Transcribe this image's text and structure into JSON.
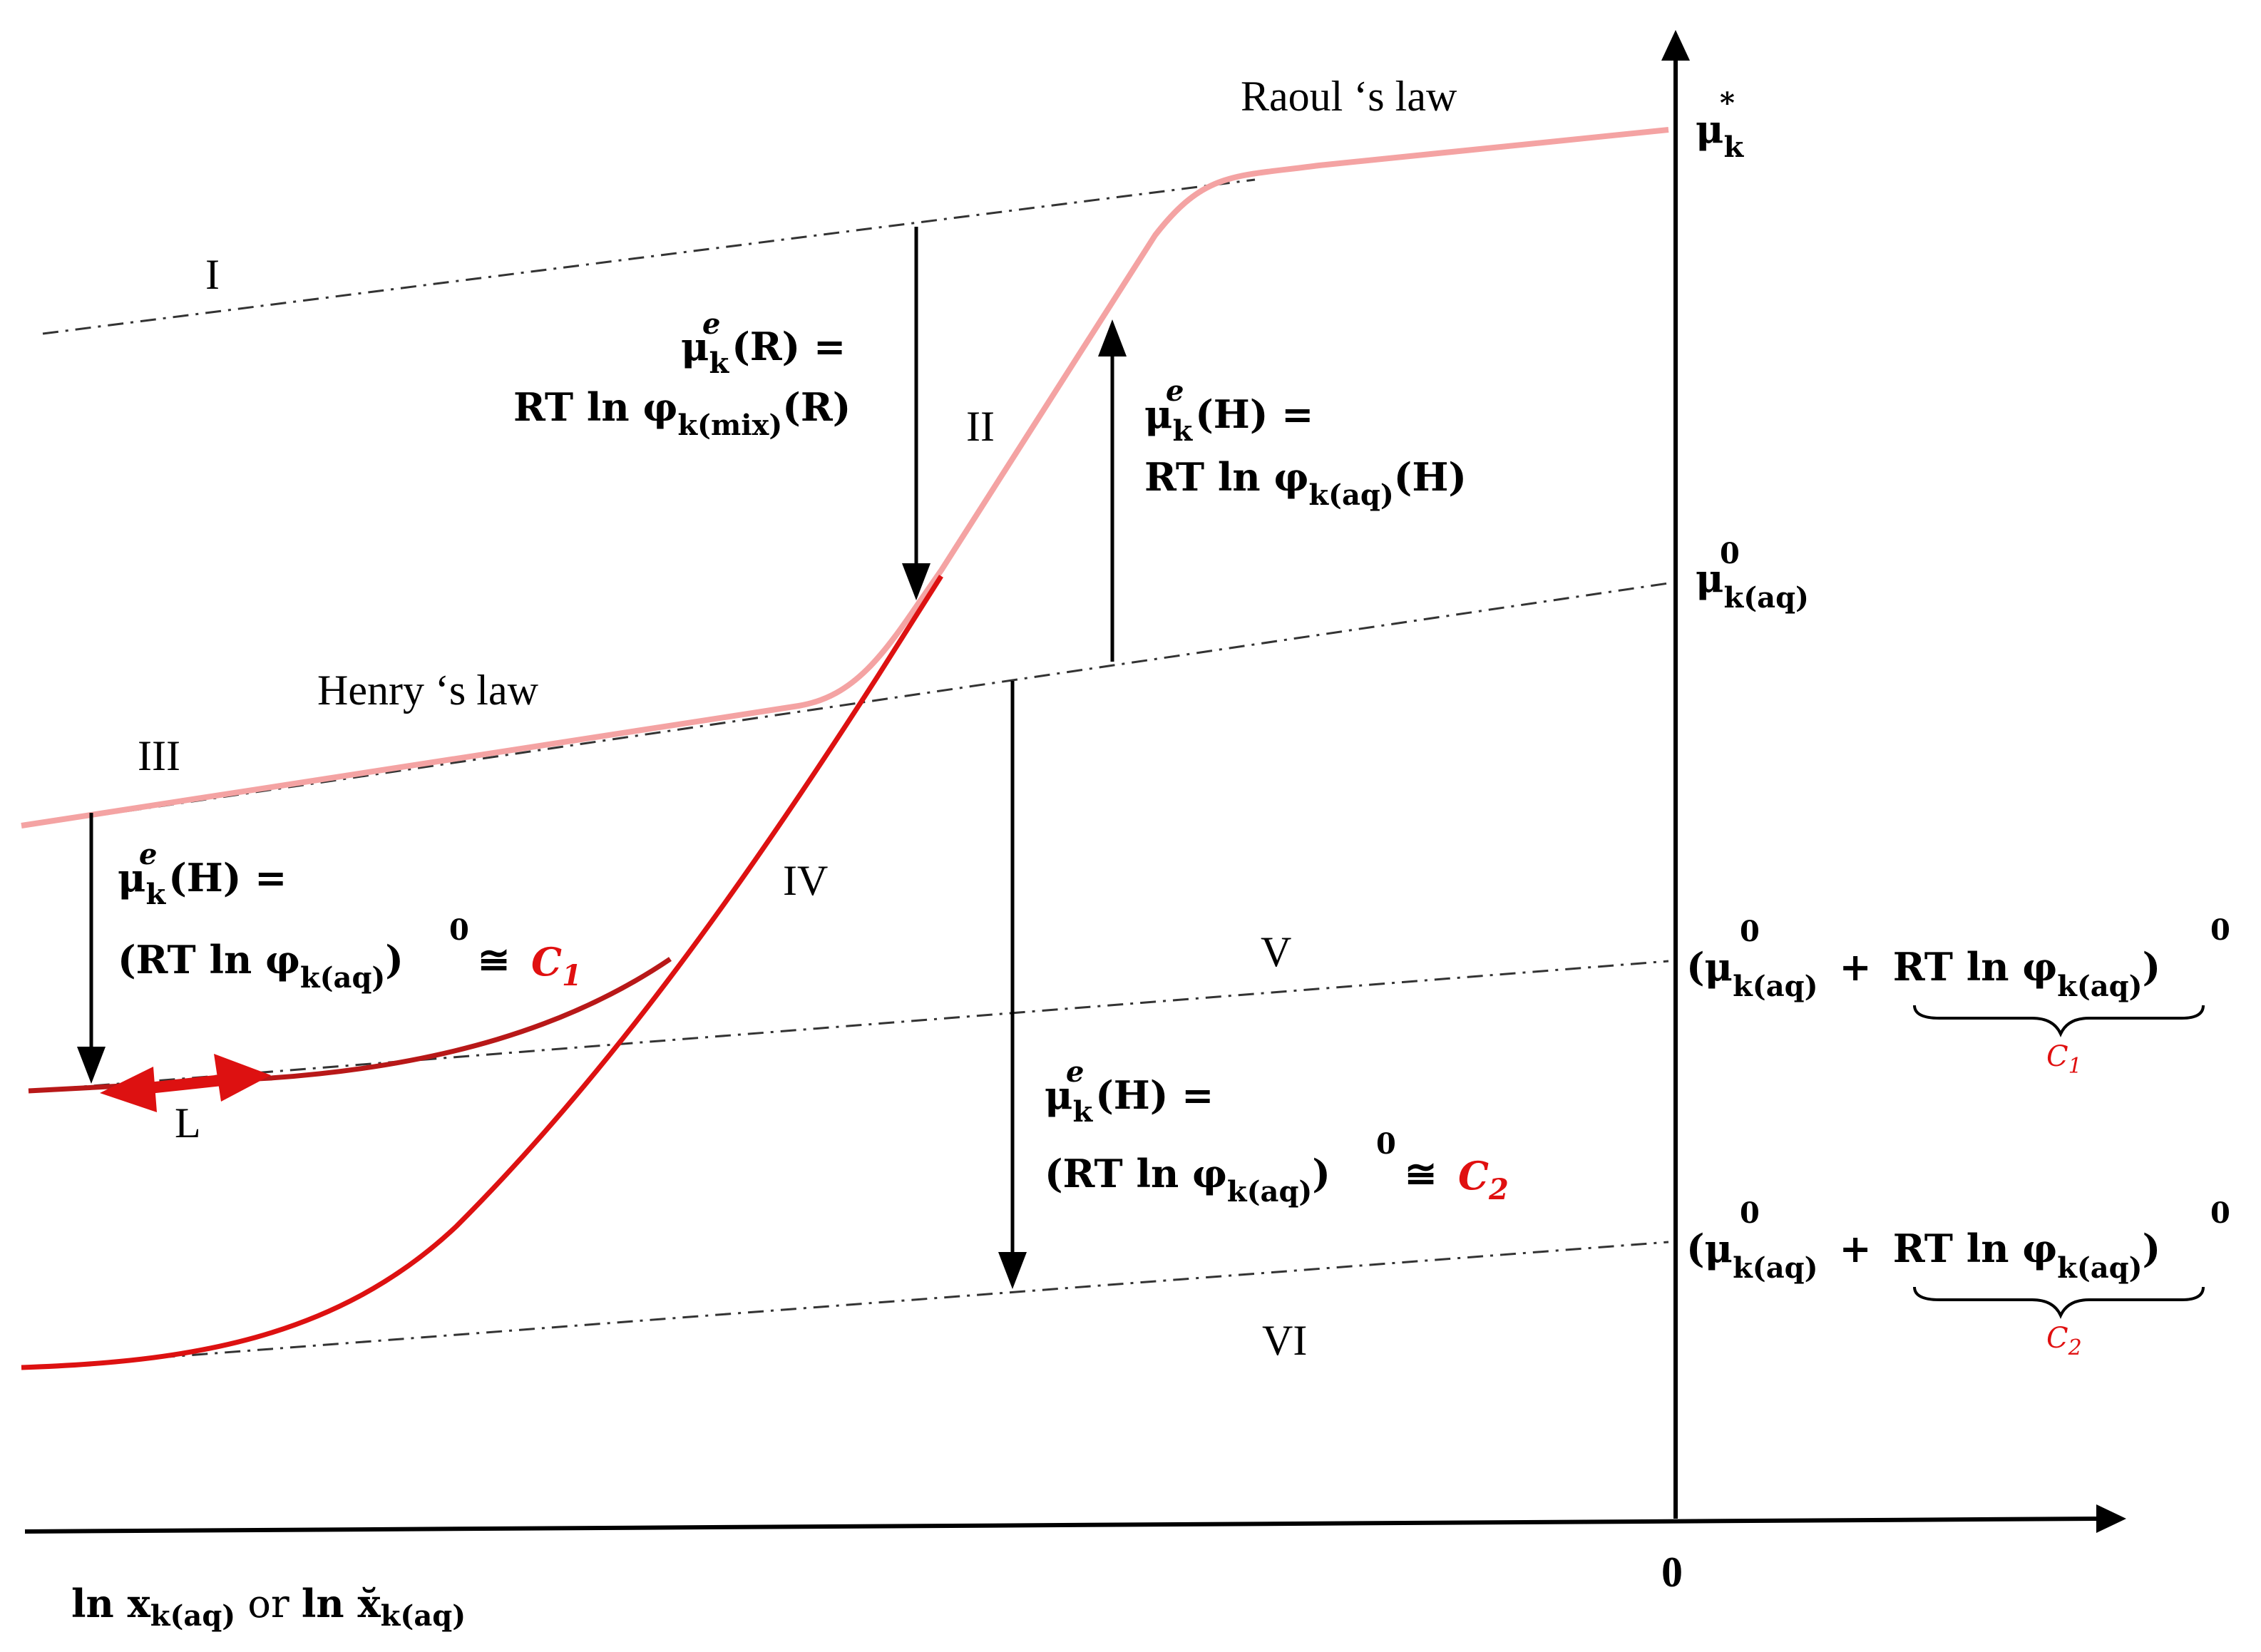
{
  "colors": {
    "raoult_henry_curve": "#f4a3a3",
    "red_curve": "#dd1111",
    "dark_red_curve": "#b81818",
    "accent_text": "#e01010",
    "axis": "#000000"
  },
  "regions": {
    "I": "I",
    "II": "II",
    "III": "III",
    "IV": "IV",
    "V": "V",
    "VI": "VI",
    "L": "L"
  },
  "laws": {
    "raoult": "Raoul ‘s law",
    "henry": "Henry ‘s law"
  },
  "axis": {
    "x_label_part1": "ln x",
    "x_label_sub1": "k(aq)",
    "x_label_or": " or ",
    "x_label_part2": "ln x̆",
    "x_label_sub2": "k(aq)",
    "origin": "0"
  },
  "y_marks": {
    "mu_star": "μ",
    "mu_star_sub": "k",
    "mu_star_sup": "*",
    "mu_zero": "μ",
    "mu_zero_sub": "k(aq)",
    "mu_zero_sup": "0",
    "c1_expr_open": "(μ",
    "c1_expr_sub": "k(aq)",
    "c1_expr_sup": "0",
    "c1_expr_plus": "+",
    "c1_expr_rt": "RT  ln φ",
    "c1_expr_rt_sub": "k(aq)",
    "c1_expr_close": ")",
    "c1_expr_outer_sup": "0",
    "c1_brace_label": "C",
    "c1_brace_sub": "1",
    "c2_expr_open": "(μ",
    "c2_expr_sub": "k(aq)",
    "c2_expr_sup": "0",
    "c2_expr_plus": "+",
    "c2_expr_rt": "RT  ln φ",
    "c2_expr_rt_sub": "k(aq)",
    "c2_expr_close": ")",
    "c2_expr_outer_sup": "0",
    "c2_brace_label": "C",
    "c2_brace_sub": "2"
  },
  "equations": {
    "muR_line1_mu": "μ",
    "muR_line1_sup": "e",
    "muR_line1_sub": "k",
    "muR_line1_rest": "(R) =",
    "muR_line2": "RT ln φ",
    "muR_line2_sub": "k(mix)",
    "muR_line2_rest": "(R)",
    "muH_line1_mu": "μ",
    "muH_line1_sup": "e",
    "muH_line1_sub": "k",
    "muH_line1_rest": "(H) =",
    "muH_line2": "RT ln φ",
    "muH_line2_sub": "k(aq)",
    "muH_line2_rest": "(H)",
    "c1eq_line1_mu": "μ",
    "c1eq_line1_sup": "e",
    "c1eq_line1_sub": "k",
    "c1eq_line1_rest": "(H) =",
    "c1eq_line2": "(RT  ln φ",
    "c1eq_line2_sub": "k(aq)",
    "c1eq_line2_close": ")",
    "c1eq_line2_sup": "0",
    "c1eq_line2_approx": "≅",
    "c1eq_c": "C",
    "c1eq_c_sub": "1",
    "c2eq_line1_mu": "μ",
    "c2eq_line1_sup": "e",
    "c2eq_line1_sub": "k",
    "c2eq_line1_rest": "(H) =",
    "c2eq_line2": "(RT  ln φ",
    "c2eq_line2_sub": "k(aq)",
    "c2eq_line2_close": ")",
    "c2eq_line2_sup": "0",
    "c2eq_line2_approx": "≅",
    "c2eq_c": "C",
    "c2eq_c_sub": "2"
  }
}
